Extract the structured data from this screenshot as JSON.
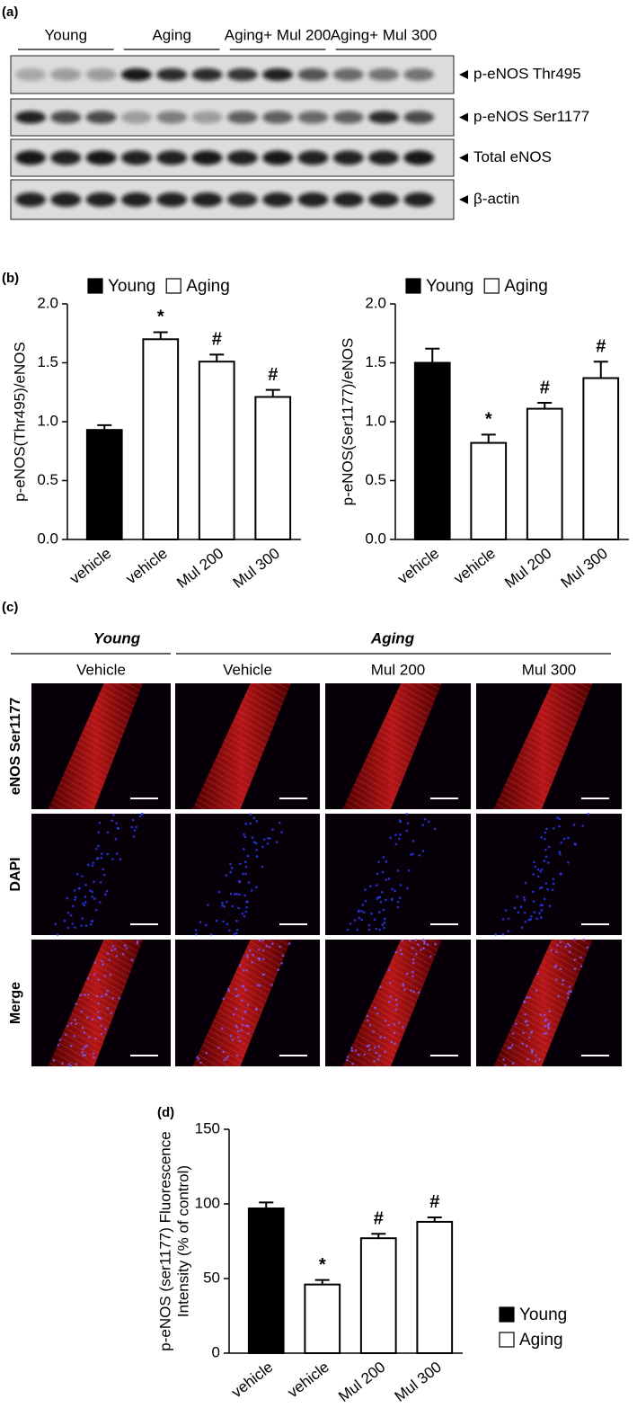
{
  "panels": {
    "a": "(a)",
    "b": "(b)",
    "c": "(c)",
    "d": "(d)"
  },
  "blot": {
    "groups": [
      "Young",
      "Aging",
      "Aging+ Mul 200",
      "Aging+ Mul 300"
    ],
    "bands": [
      "p-eNOS Thr495",
      "p-eNOS Ser1177",
      "Total eNOS",
      "β-actin"
    ]
  },
  "images": {
    "groups": [
      "Young",
      "Aging"
    ],
    "columns": [
      "Vehicle",
      "Vehicle",
      "Mul 200",
      "Mul 300"
    ],
    "rows": [
      {
        "label": "eNOS Ser1177",
        "color": "#e41a1c"
      },
      {
        "label": "DAPI",
        "color": "#1f1fd6"
      },
      {
        "label": "Merge",
        "color": "#000000"
      }
    ]
  },
  "chart_data": [
    {
      "type": "bar",
      "ylabel": [
        "p-eNOS(Thr495)/eNOS"
      ],
      "legend": "top",
      "categories": [
        "vehicle",
        "vehicle",
        "Mul 200",
        "Mul 300"
      ],
      "series": [
        {
          "name": "Young",
          "color": "#000000",
          "values": [
            0.93,
            null,
            null,
            null
          ],
          "errors": [
            0.04,
            null,
            null,
            null
          ],
          "markers": [
            null,
            null,
            null,
            null
          ]
        },
        {
          "name": "Aging",
          "color": "#ffffff",
          "values": [
            null,
            1.7,
            1.51,
            1.21
          ],
          "errors": [
            null,
            0.06,
            0.06,
            0.06
          ],
          "markers": [
            null,
            "*",
            "#",
            "#"
          ]
        }
      ],
      "ylim": [
        0,
        2.0
      ],
      "yticks": [
        {
          "value": 0,
          "label": "0.0"
        },
        0.5,
        {
          "value": 1,
          "label": "1.0"
        },
        1.5,
        {
          "value": 2,
          "label": "2.0"
        }
      ]
    },
    {
      "type": "bar",
      "ylabel": [
        "p-eNOS(Ser1177)/eNOS"
      ],
      "legend": "top",
      "categories": [
        "vehicle",
        "vehicle",
        "Mul 200",
        "Mul 300"
      ],
      "series": [
        {
          "name": "Young",
          "color": "#000000",
          "values": [
            1.5,
            null,
            null,
            null
          ],
          "errors": [
            0.12,
            null,
            null,
            null
          ],
          "markers": [
            null,
            null,
            null,
            null
          ]
        },
        {
          "name": "Aging",
          "color": "#ffffff",
          "values": [
            null,
            0.82,
            1.11,
            1.37
          ],
          "errors": [
            null,
            0.07,
            0.05,
            0.14
          ],
          "markers": [
            null,
            "*",
            "#",
            "#"
          ]
        }
      ],
      "ylim": [
        0,
        2.0
      ],
      "yticks": [
        {
          "value": 0,
          "label": "0.0"
        },
        0.5,
        {
          "value": 1,
          "label": "1.0"
        },
        1.5,
        {
          "value": 2,
          "label": "2.0"
        }
      ]
    },
    {
      "type": "bar",
      "ylabel": [
        "p-eNOS (ser1177) Fluorescence",
        "Intensity (% of control)"
      ],
      "legend": "lower right",
      "categories": [
        "vehicle",
        "vehicle",
        "Mul 200",
        "Mul 300"
      ],
      "series": [
        {
          "name": "Young",
          "color": "#000000",
          "values": [
            97,
            null,
            null,
            null
          ],
          "errors": [
            4,
            null,
            null,
            null
          ],
          "markers": [
            null,
            null,
            null,
            null
          ]
        },
        {
          "name": "Aging",
          "color": "#ffffff",
          "values": [
            null,
            46,
            77,
            88
          ],
          "errors": [
            null,
            3,
            3,
            3
          ],
          "markers": [
            null,
            "*",
            "#",
            "#"
          ]
        }
      ],
      "ylim": [
        0,
        150
      ],
      "yticks": [
        0,
        50,
        100,
        150
      ]
    }
  ]
}
